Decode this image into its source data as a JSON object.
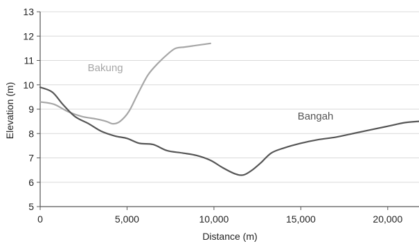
{
  "chart_data": {
    "type": "line",
    "title": "",
    "xlabel": "Distance (m)",
    "ylabel": "Elevation (m)",
    "xlim": [
      0,
      21800
    ],
    "ylim": [
      5,
      13
    ],
    "xticks": [
      0,
      5000,
      10000,
      15000,
      20000
    ],
    "xtick_labels": [
      "0",
      "5,000",
      "10,000",
      "15,000",
      "20,000"
    ],
    "yticks": [
      5,
      6,
      7,
      8,
      9,
      10,
      11,
      12,
      13
    ],
    "ytick_labels": [
      "5",
      "6",
      "7",
      "8",
      "9",
      "10",
      "11",
      "12",
      "13"
    ],
    "grid": {
      "horizontal": true,
      "vertical": false
    },
    "legend": "none (series labelled inline)",
    "series": [
      {
        "name": "Bakung",
        "color": "#a6a6a6",
        "x": [
          0,
          800,
          1600,
          2400,
          3200,
          3800,
          4200,
          4600,
          5100,
          5600,
          6200,
          6800,
          7400,
          7800,
          8300,
          8800,
          9300,
          9800
        ],
        "y": [
          9.3,
          9.2,
          8.9,
          8.7,
          8.6,
          8.5,
          8.4,
          8.5,
          8.9,
          9.6,
          10.4,
          10.9,
          11.3,
          11.5,
          11.55,
          11.6,
          11.65,
          11.7
        ]
      },
      {
        "name": "Bangah",
        "color": "#555555",
        "x": [
          0,
          700,
          1300,
          2000,
          2800,
          3500,
          4300,
          5000,
          5700,
          6500,
          7300,
          8200,
          9000,
          9800,
          10500,
          11200,
          11700,
          12200,
          12700,
          13300,
          14000,
          15000,
          16000,
          17000,
          18000,
          19000,
          20000,
          21000,
          21800
        ],
        "y": [
          9.9,
          9.7,
          9.2,
          8.7,
          8.4,
          8.1,
          7.9,
          7.8,
          7.6,
          7.55,
          7.3,
          7.2,
          7.1,
          6.9,
          6.6,
          6.35,
          6.3,
          6.5,
          6.8,
          7.2,
          7.4,
          7.6,
          7.75,
          7.85,
          8.0,
          8.15,
          8.3,
          8.45,
          8.5
        ]
      }
    ],
    "annotations": [
      {
        "text": "Bakung",
        "x": 6500,
        "y": 10.9
      },
      {
        "text": "Bangah",
        "x": 17000,
        "y": 8.4
      }
    ]
  }
}
